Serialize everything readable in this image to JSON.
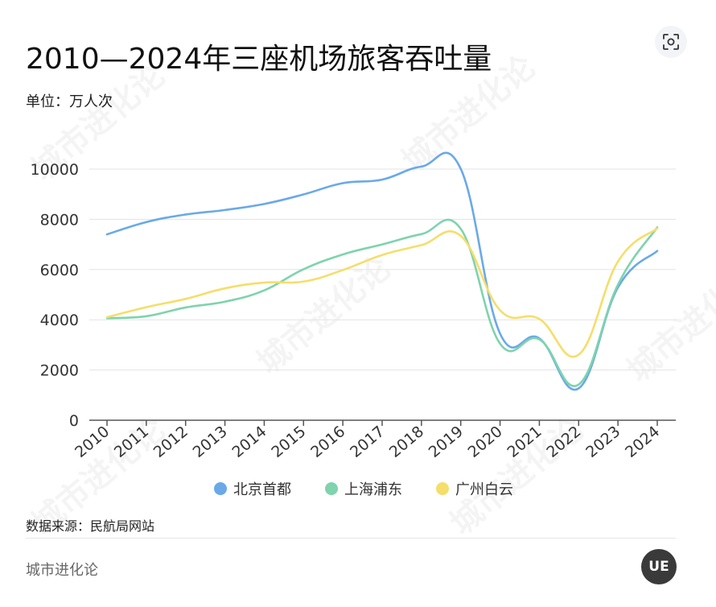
{
  "header": {
    "title": "2010—2024年三座机场旅客吞吐量",
    "unit": "单位：万人次"
  },
  "chart_data": {
    "type": "line",
    "title": "2010—2024年三座机场旅客吞吐量",
    "ylabel": "单位：万人次",
    "xlabel": "",
    "x": [
      "2010",
      "2011",
      "2012",
      "2013",
      "2014",
      "2015",
      "2016",
      "2017",
      "2018",
      "2019",
      "2020",
      "2021",
      "2022",
      "2023",
      "2024"
    ],
    "ylim": [
      0,
      10000
    ],
    "yticks": [
      0,
      2000,
      4000,
      6000,
      8000,
      10000
    ],
    "grid": true,
    "legend": "bottom",
    "series": [
      {
        "name": "北京首都",
        "color": "#6aa9e8",
        "values": [
          7400,
          7890,
          8190,
          8370,
          8610,
          8990,
          9440,
          9580,
          10100,
          10010,
          3450,
          3260,
          1270,
          5290,
          6740
        ]
      },
      {
        "name": "上海浦东",
        "color": "#7fd3ad",
        "values": [
          4060,
          4140,
          4490,
          4720,
          5170,
          6010,
          6600,
          7000,
          7410,
          7620,
          3050,
          3220,
          1420,
          5400,
          7680
        ]
      },
      {
        "name": "广州白云",
        "color": "#f5de6a",
        "values": [
          4100,
          4500,
          4830,
          5250,
          5480,
          5520,
          5980,
          6580,
          6970,
          7340,
          4380,
          4030,
          2610,
          6320,
          7640
        ]
      }
    ]
  },
  "footer": {
    "source": "数据来源：民航局网站",
    "brand": "城市进化论",
    "logo_text": "UE"
  },
  "watermark": {
    "text": "城市进化论"
  },
  "icons": {
    "scan": "scan-icon"
  }
}
